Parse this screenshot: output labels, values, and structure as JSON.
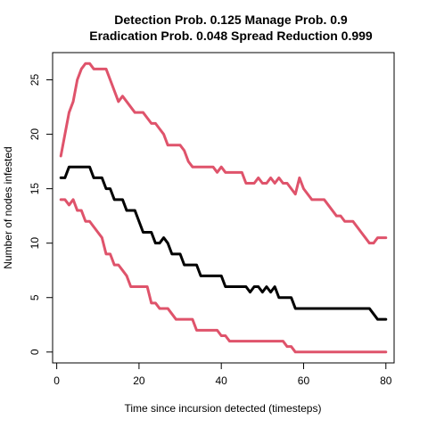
{
  "chart_data": {
    "type": "line",
    "title_line1": "Detection Prob. 0.125 Manage Prob. 0.9",
    "title_line2": "Eradication Prob. 0.048 Spread Reduction 0.999",
    "xlabel": "Time since incursion detected (timesteps)",
    "ylabel": "Number of nodes infested",
    "xlim": [
      -1,
      82
    ],
    "ylim": [
      -1,
      27.5
    ],
    "x_ticks": [
      0,
      20,
      40,
      60,
      80
    ],
    "y_ticks": [
      0,
      5,
      10,
      15,
      20,
      25
    ],
    "grid": false,
    "series": [
      {
        "color": "#DF536B",
        "width": 3,
        "points": [
          [
            1,
            18
          ],
          [
            2,
            20
          ],
          [
            3,
            22
          ],
          [
            4,
            23
          ],
          [
            5,
            25
          ],
          [
            6,
            26
          ],
          [
            7,
            26.5
          ],
          [
            8,
            26.5
          ],
          [
            9,
            26
          ],
          [
            10,
            26
          ],
          [
            11,
            26
          ],
          [
            12,
            26
          ],
          [
            13,
            25
          ],
          [
            14,
            24
          ],
          [
            15,
            23
          ],
          [
            16,
            23.5
          ],
          [
            17,
            23
          ],
          [
            18,
            22.5
          ],
          [
            19,
            22
          ],
          [
            20,
            22
          ],
          [
            21,
            22
          ],
          [
            22,
            21.5
          ],
          [
            23,
            21
          ],
          [
            24,
            21
          ],
          [
            25,
            20.5
          ],
          [
            26,
            20
          ],
          [
            27,
            19
          ],
          [
            28,
            19
          ],
          [
            29,
            19
          ],
          [
            30,
            19
          ],
          [
            31,
            18.5
          ],
          [
            32,
            17.5
          ],
          [
            33,
            17
          ],
          [
            34,
            17
          ],
          [
            35,
            17
          ],
          [
            36,
            17
          ],
          [
            37,
            17
          ],
          [
            38,
            17
          ],
          [
            39,
            16.5
          ],
          [
            40,
            17
          ],
          [
            41,
            16.5
          ],
          [
            42,
            16.5
          ],
          [
            43,
            16.5
          ],
          [
            44,
            16.5
          ],
          [
            45,
            16.5
          ],
          [
            46,
            15.5
          ],
          [
            47,
            15.5
          ],
          [
            48,
            15.5
          ],
          [
            49,
            16
          ],
          [
            50,
            15.5
          ],
          [
            51,
            15.5
          ],
          [
            52,
            16
          ],
          [
            53,
            15.5
          ],
          [
            54,
            16
          ],
          [
            55,
            15.5
          ],
          [
            56,
            15.5
          ],
          [
            57,
            15
          ],
          [
            58,
            14.5
          ],
          [
            59,
            16
          ],
          [
            60,
            15
          ],
          [
            61,
            14.5
          ],
          [
            62,
            14
          ],
          [
            63,
            14
          ],
          [
            64,
            14
          ],
          [
            65,
            14
          ],
          [
            66,
            13.5
          ],
          [
            67,
            13
          ],
          [
            68,
            12.5
          ],
          [
            69,
            12.5
          ],
          [
            70,
            12
          ],
          [
            71,
            12
          ],
          [
            72,
            12
          ],
          [
            73,
            11.5
          ],
          [
            74,
            11
          ],
          [
            75,
            10.5
          ],
          [
            76,
            10
          ],
          [
            77,
            10
          ],
          [
            78,
            10.5
          ],
          [
            79,
            10.5
          ],
          [
            80,
            10.5
          ]
        ]
      },
      {
        "color": "#000000",
        "width": 3,
        "points": [
          [
            1,
            16
          ],
          [
            2,
            16
          ],
          [
            3,
            17
          ],
          [
            4,
            17
          ],
          [
            5,
            17
          ],
          [
            6,
            17
          ],
          [
            7,
            17
          ],
          [
            8,
            17
          ],
          [
            9,
            16
          ],
          [
            10,
            16
          ],
          [
            11,
            16
          ],
          [
            12,
            15
          ],
          [
            13,
            15
          ],
          [
            14,
            14
          ],
          [
            15,
            14
          ],
          [
            16,
            14
          ],
          [
            17,
            13
          ],
          [
            18,
            13
          ],
          [
            19,
            13
          ],
          [
            20,
            12
          ],
          [
            21,
            11
          ],
          [
            22,
            11
          ],
          [
            23,
            11
          ],
          [
            24,
            10
          ],
          [
            25,
            10
          ],
          [
            26,
            10.5
          ],
          [
            27,
            10
          ],
          [
            28,
            9
          ],
          [
            29,
            9
          ],
          [
            30,
            9
          ],
          [
            31,
            8
          ],
          [
            32,
            8
          ],
          [
            33,
            8
          ],
          [
            34,
            8
          ],
          [
            35,
            7
          ],
          [
            36,
            7
          ],
          [
            37,
            7
          ],
          [
            38,
            7
          ],
          [
            39,
            7
          ],
          [
            40,
            7
          ],
          [
            41,
            6
          ],
          [
            42,
            6
          ],
          [
            43,
            6
          ],
          [
            44,
            6
          ],
          [
            45,
            6
          ],
          [
            46,
            6
          ],
          [
            47,
            5.5
          ],
          [
            48,
            6
          ],
          [
            49,
            6
          ],
          [
            50,
            5.5
          ],
          [
            51,
            6
          ],
          [
            52,
            5.5
          ],
          [
            53,
            6
          ],
          [
            54,
            5
          ],
          [
            55,
            5
          ],
          [
            56,
            5
          ],
          [
            57,
            5
          ],
          [
            58,
            4
          ],
          [
            59,
            4
          ],
          [
            60,
            4
          ],
          [
            61,
            4
          ],
          [
            62,
            4
          ],
          [
            63,
            4
          ],
          [
            64,
            4
          ],
          [
            65,
            4
          ],
          [
            66,
            4
          ],
          [
            67,
            4
          ],
          [
            68,
            4
          ],
          [
            69,
            4
          ],
          [
            70,
            4
          ],
          [
            71,
            4
          ],
          [
            72,
            4
          ],
          [
            73,
            4
          ],
          [
            74,
            4
          ],
          [
            75,
            4
          ],
          [
            76,
            4
          ],
          [
            77,
            3.5
          ],
          [
            78,
            3
          ],
          [
            79,
            3
          ],
          [
            80,
            3
          ]
        ]
      },
      {
        "color": "#DF536B",
        "width": 3,
        "points": [
          [
            1,
            14
          ],
          [
            2,
            14
          ],
          [
            3,
            13.5
          ],
          [
            4,
            14
          ],
          [
            5,
            13
          ],
          [
            6,
            13
          ],
          [
            7,
            12
          ],
          [
            8,
            12
          ],
          [
            9,
            11.5
          ],
          [
            10,
            11
          ],
          [
            11,
            10.5
          ],
          [
            12,
            9
          ],
          [
            13,
            9
          ],
          [
            14,
            8
          ],
          [
            15,
            8
          ],
          [
            16,
            7.5
          ],
          [
            17,
            7
          ],
          [
            18,
            6
          ],
          [
            19,
            6
          ],
          [
            20,
            6
          ],
          [
            21,
            6
          ],
          [
            22,
            6
          ],
          [
            23,
            4.5
          ],
          [
            24,
            4.5
          ],
          [
            25,
            4
          ],
          [
            26,
            4
          ],
          [
            27,
            4
          ],
          [
            28,
            3.5
          ],
          [
            29,
            3
          ],
          [
            30,
            3
          ],
          [
            31,
            3
          ],
          [
            32,
            3
          ],
          [
            33,
            3
          ],
          [
            34,
            2
          ],
          [
            35,
            2
          ],
          [
            36,
            2
          ],
          [
            37,
            2
          ],
          [
            38,
            2
          ],
          [
            39,
            2
          ],
          [
            40,
            1.5
          ],
          [
            41,
            1.5
          ],
          [
            42,
            1
          ],
          [
            43,
            1
          ],
          [
            44,
            1
          ],
          [
            45,
            1
          ],
          [
            46,
            1
          ],
          [
            47,
            1
          ],
          [
            48,
            1
          ],
          [
            49,
            1
          ],
          [
            50,
            1
          ],
          [
            51,
            1
          ],
          [
            52,
            1
          ],
          [
            53,
            1
          ],
          [
            54,
            1
          ],
          [
            55,
            1
          ],
          [
            56,
            0.5
          ],
          [
            57,
            0.5
          ],
          [
            58,
            0
          ],
          [
            59,
            0
          ],
          [
            60,
            0
          ],
          [
            61,
            0
          ],
          [
            62,
            0
          ],
          [
            63,
            0
          ],
          [
            64,
            0
          ],
          [
            65,
            0
          ],
          [
            66,
            0
          ],
          [
            67,
            0
          ],
          [
            68,
            0
          ],
          [
            69,
            0
          ],
          [
            70,
            0
          ],
          [
            71,
            0
          ],
          [
            72,
            0
          ],
          [
            73,
            0
          ],
          [
            74,
            0
          ],
          [
            75,
            0
          ],
          [
            76,
            0
          ],
          [
            77,
            0
          ],
          [
            78,
            0
          ],
          [
            79,
            0
          ],
          [
            80,
            0
          ]
        ]
      }
    ]
  }
}
